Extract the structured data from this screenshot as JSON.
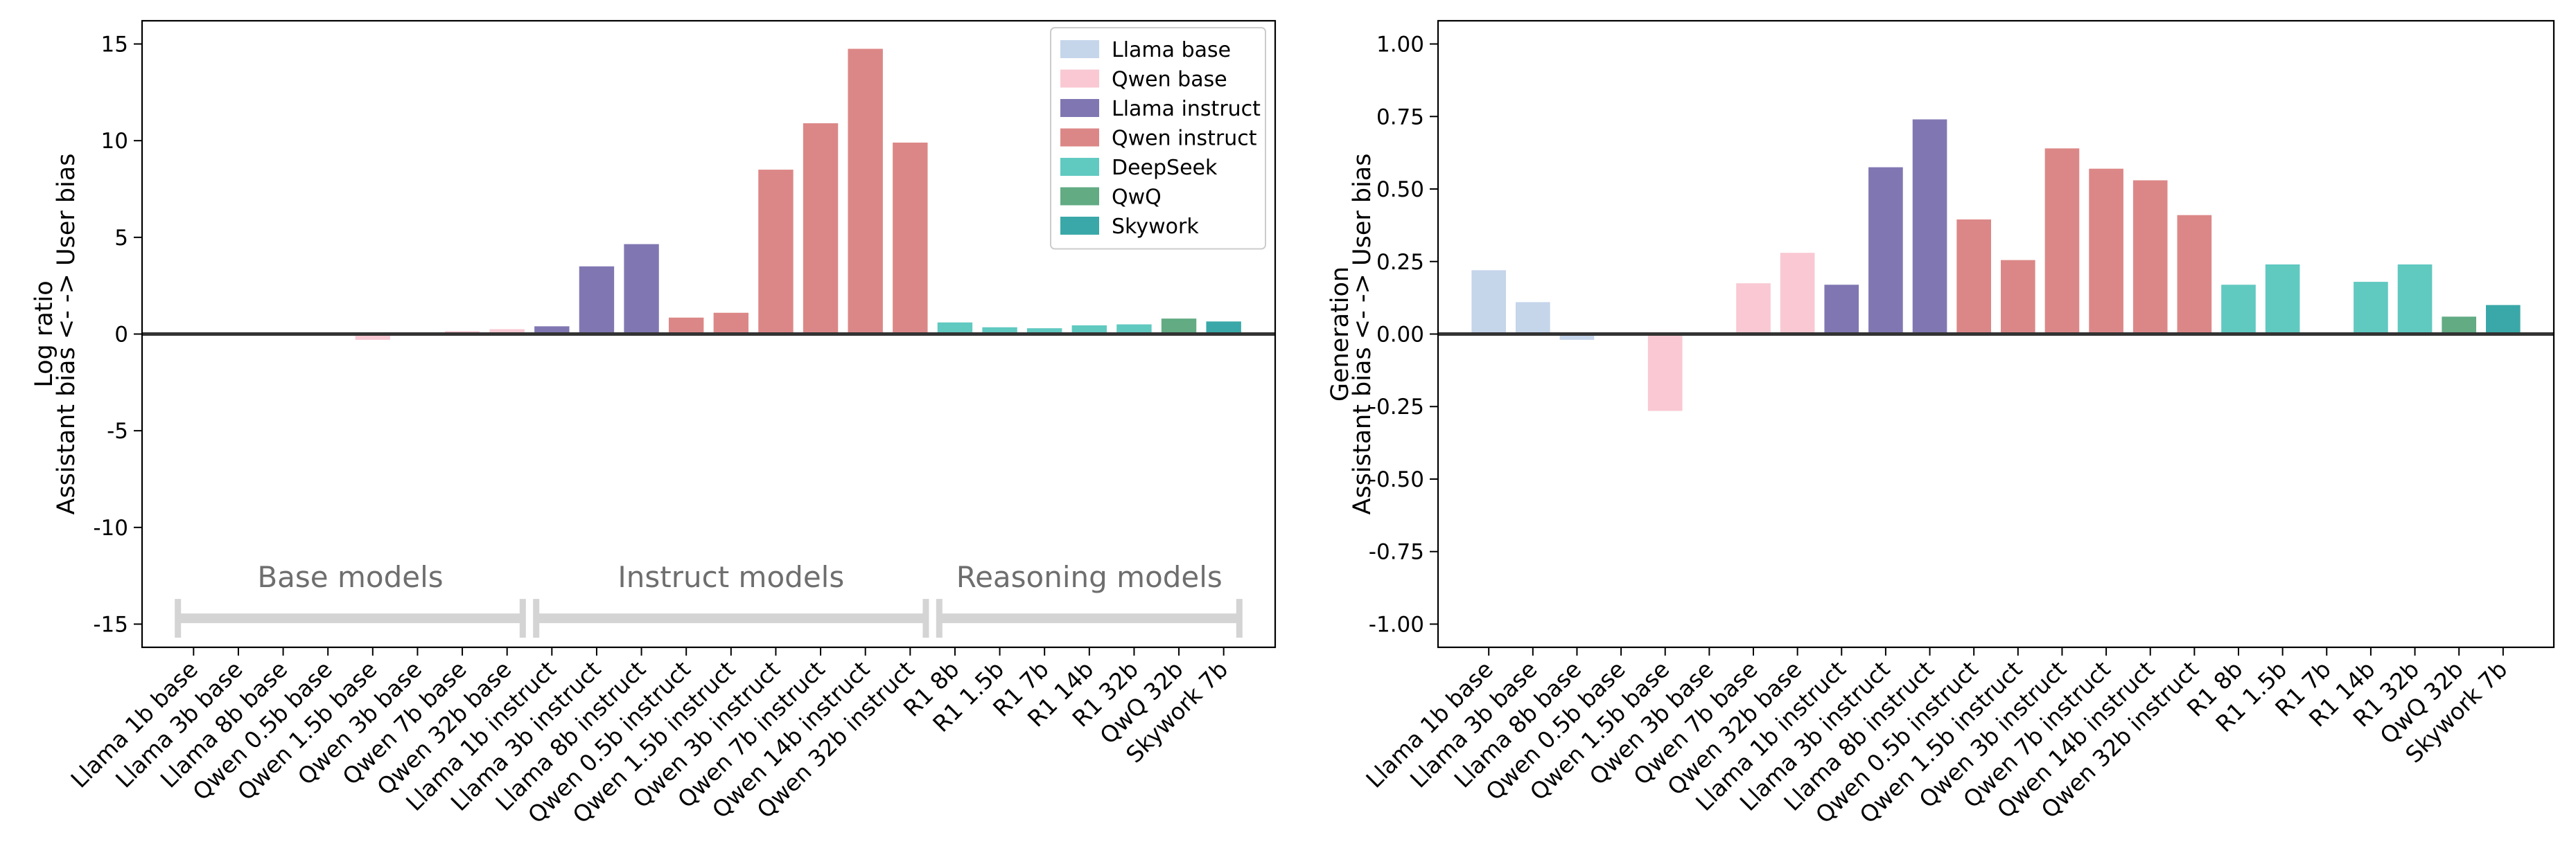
{
  "chart_data": [
    {
      "type": "bar",
      "ylabel": "Assistant bias <-   -> User bias",
      "ylabel_top": "Log ratio",
      "ylim": [
        -16.2,
        16.2
      ],
      "yticks": [
        -15,
        -10,
        -5,
        0,
        5,
        10,
        15
      ],
      "categories": [
        "Llama 1b base",
        "Llama 3b base",
        "Llama 8b base",
        "Qwen 0.5b base",
        "Qwen 1.5b base",
        "Qwen 3b base",
        "Qwen 7b base",
        "Qwen 32b base",
        "Llama 1b instruct",
        "Llama 3b instruct",
        "Llama 8b instruct",
        "Qwen 0.5b instruct",
        "Qwen 1.5b instruct",
        "Qwen 3b instruct",
        "Qwen 7b instruct",
        "Qwen 14b instruct",
        "Qwen 32b instruct",
        "R1 8b",
        "R1 1.5b",
        "R1 7b",
        "R1 14b",
        "R1 32b",
        "QwQ 32b",
        "Skywork 7b"
      ],
      "groups": [
        "Llama base",
        "Llama base",
        "Llama base",
        "Qwen base",
        "Qwen base",
        "Qwen base",
        "Qwen base",
        "Qwen base",
        "Llama instruct",
        "Llama instruct",
        "Llama instruct",
        "Qwen instruct",
        "Qwen instruct",
        "Qwen instruct",
        "Qwen instruct",
        "Qwen instruct",
        "Qwen instruct",
        "DeepSeek",
        "DeepSeek",
        "DeepSeek",
        "DeepSeek",
        "DeepSeek",
        "QwQ",
        "Skywork"
      ],
      "values": [
        0.05,
        0.0,
        0.0,
        0.0,
        -0.3,
        0.0,
        0.15,
        0.25,
        0.4,
        3.5,
        4.65,
        0.85,
        1.1,
        8.5,
        10.9,
        14.75,
        9.9,
        0.6,
        0.35,
        0.3,
        0.45,
        0.5,
        0.8,
        0.65
      ],
      "legend": [
        {
          "name": "Llama base",
          "color": "#c5d5ea"
        },
        {
          "name": "Qwen base",
          "color": "#f9c8d3"
        },
        {
          "name": "Llama instruct",
          "color": "#8077b2"
        },
        {
          "name": "Qwen instruct",
          "color": "#dc8787"
        },
        {
          "name": "DeepSeek",
          "color": "#60c9c0"
        },
        {
          "name": "QwQ",
          "color": "#62ab83"
        },
        {
          "name": "Skywork",
          "color": "#3aa8a8"
        }
      ],
      "legend_position": "top-right",
      "annotations": [
        {
          "text": "Base models",
          "from": 0,
          "to": 7,
          "y": -14.7
        },
        {
          "text": "Instruct models",
          "from": 8,
          "to": 16,
          "y": -14.7
        },
        {
          "text": "Reasoning models",
          "from": 17,
          "to": 23,
          "y": -14.7
        }
      ]
    },
    {
      "type": "bar",
      "ylabel": "Assistant bias <-   -> User bias",
      "ylabel_top": "Generation",
      "ylim": [
        -1.08,
        1.08
      ],
      "yticks": [
        -1.0,
        -0.75,
        -0.5,
        -0.25,
        0.0,
        0.25,
        0.5,
        0.75,
        1.0
      ],
      "categories": [
        "Llama 1b base",
        "Llama 3b base",
        "Llama 8b base",
        "Qwen 0.5b base",
        "Qwen 1.5b base",
        "Qwen 3b base",
        "Qwen 7b base",
        "Qwen 32b base",
        "Llama 1b instruct",
        "Llama 3b instruct",
        "Llama 8b instruct",
        "Qwen 0.5b instruct",
        "Qwen 1.5b instruct",
        "Qwen 3b instruct",
        "Qwen 7b instruct",
        "Qwen 14b instruct",
        "Qwen 32b instruct",
        "R1 8b",
        "R1 1.5b",
        "R1 7b",
        "R1 14b",
        "R1 32b",
        "QwQ 32b",
        "Skywork 7b"
      ],
      "groups": [
        "Llama base",
        "Llama base",
        "Llama base",
        "Qwen base",
        "Qwen base",
        "Qwen base",
        "Qwen base",
        "Qwen base",
        "Llama instruct",
        "Llama instruct",
        "Llama instruct",
        "Qwen instruct",
        "Qwen instruct",
        "Qwen instruct",
        "Qwen instruct",
        "Qwen instruct",
        "Qwen instruct",
        "DeepSeek",
        "DeepSeek",
        "DeepSeek",
        "DeepSeek",
        "DeepSeek",
        "QwQ",
        "Skywork"
      ],
      "values": [
        0.22,
        0.11,
        -0.02,
        0.0,
        -0.265,
        0.005,
        0.175,
        0.28,
        0.17,
        0.575,
        0.74,
        0.395,
        0.255,
        0.64,
        0.57,
        0.53,
        0.41,
        0.17,
        0.24,
        0.0,
        0.18,
        0.24,
        0.06,
        0.1
      ]
    }
  ],
  "colors": {
    "Llama base": "#c5d5ea",
    "Qwen base": "#f9c8d3",
    "Llama instruct": "#8077b2",
    "Qwen instruct": "#dc8787",
    "DeepSeek": "#60c9c0",
    "QwQ": "#62ab83",
    "Skywork": "#3aa8a8",
    "bracket": "#d4d4d4",
    "bracket_text": "#6e6e6e",
    "axis": "#000000",
    "zero_line": "#333333"
  }
}
